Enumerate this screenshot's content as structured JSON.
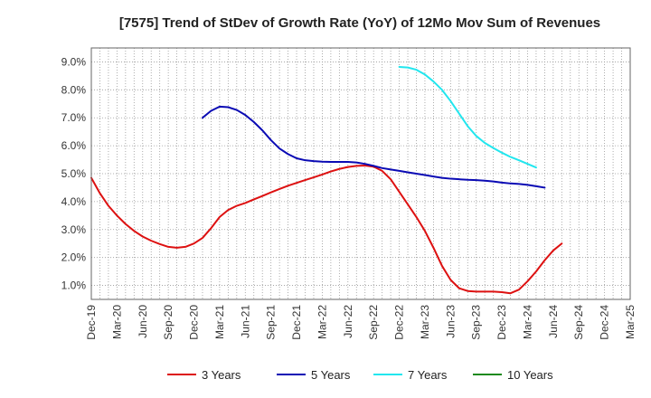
{
  "chart_data": {
    "type": "line",
    "title": "[7575]  Trend of StDev of Growth Rate (YoY) of 12Mo Mov Sum of Revenues",
    "xlabel": "",
    "ylabel": "",
    "x_tick_labels": [
      "Dec-19",
      "Mar-20",
      "Jun-20",
      "Sep-20",
      "Dec-20",
      "Mar-21",
      "Jun-21",
      "Sep-21",
      "Dec-21",
      "Mar-22",
      "Jun-22",
      "Sep-22",
      "Dec-22",
      "Mar-23",
      "Jun-23",
      "Sep-23",
      "Dec-23",
      "Mar-24",
      "Jun-24",
      "Sep-24",
      "Dec-24",
      "Mar-25"
    ],
    "y_tick_labels": [
      "1.0%",
      "2.0%",
      "3.0%",
      "4.0%",
      "5.0%",
      "6.0%",
      "7.0%",
      "8.0%",
      "9.0%"
    ],
    "y_ticks": [
      1,
      2,
      3,
      4,
      5,
      6,
      7,
      8,
      9
    ],
    "ylim": [
      0.5,
      9.5
    ],
    "grid": true,
    "legend_position": "bottom",
    "series": [
      {
        "name": "3 Years",
        "color": "#dd1111",
        "start_index": 0,
        "values": [
          4.85,
          4.3,
          3.85,
          3.5,
          3.2,
          2.95,
          2.75,
          2.6,
          2.48,
          2.38,
          2.35,
          2.38,
          2.5,
          2.7,
          3.05,
          3.45,
          3.7,
          3.85,
          3.95,
          4.08,
          4.2,
          4.33,
          4.45,
          4.57,
          4.67,
          4.77,
          4.87,
          4.97,
          5.08,
          5.17,
          5.24,
          5.28,
          5.29,
          5.25,
          5.1,
          4.8,
          4.35,
          3.9,
          3.45,
          2.95,
          2.35,
          1.7,
          1.2,
          0.9,
          0.8,
          0.78,
          0.78,
          0.78,
          0.76,
          0.72,
          0.85,
          1.15,
          1.5,
          1.9,
          2.25,
          2.5
        ]
      },
      {
        "name": "5 Years",
        "color": "#0a0ab4",
        "start_index": 13,
        "values": [
          7.0,
          7.25,
          7.4,
          7.38,
          7.28,
          7.1,
          6.85,
          6.55,
          6.2,
          5.9,
          5.7,
          5.55,
          5.48,
          5.45,
          5.43,
          5.42,
          5.42,
          5.42,
          5.4,
          5.35,
          5.28,
          5.2,
          5.15,
          5.1,
          5.05,
          5.0,
          4.95,
          4.9,
          4.85,
          4.82,
          4.8,
          4.78,
          4.77,
          4.75,
          4.72,
          4.68,
          4.65,
          4.63,
          4.6,
          4.55,
          4.5
        ]
      },
      {
        "name": "7 Years",
        "color": "#22e6ee",
        "start_index": 36,
        "values": [
          8.82,
          8.8,
          8.72,
          8.55,
          8.3,
          8.0,
          7.6,
          7.15,
          6.7,
          6.35,
          6.1,
          5.92,
          5.75,
          5.6,
          5.48,
          5.35,
          5.22
        ]
      },
      {
        "name": "10 Years",
        "color": "#1e8a1e",
        "start_index": 0,
        "values": []
      }
    ]
  }
}
